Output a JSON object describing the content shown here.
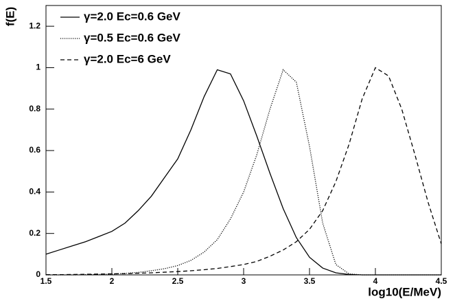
{
  "chart_data": {
    "type": "line",
    "x_label": "log10(E/MeV)",
    "y_label": "f(E)",
    "x": [
      1.5,
      1.6,
      1.7,
      1.8,
      1.9,
      2.0,
      2.1,
      2.2,
      2.3,
      2.4,
      2.5,
      2.6,
      2.7,
      2.8,
      2.9,
      3.0,
      3.1,
      3.2,
      3.3,
      3.4,
      3.5,
      3.6,
      3.7,
      3.8,
      3.9,
      4.0,
      4.1,
      4.2,
      4.3,
      4.4,
      4.5
    ],
    "series": [
      {
        "name": "γ=2.0 Ec=0.6 GeV",
        "color": "#000000",
        "dash": "solid",
        "values": [
          0.1,
          0.12,
          0.14,
          0.16,
          0.185,
          0.21,
          0.25,
          0.31,
          0.38,
          0.47,
          0.56,
          0.7,
          0.86,
          0.99,
          0.97,
          0.84,
          0.67,
          0.49,
          0.32,
          0.18,
          0.085,
          0.033,
          0.01,
          0.002,
          0,
          0,
          0,
          0,
          0,
          0,
          0
        ]
      },
      {
        "name": "γ=0.5 Ec=0.6 GeV",
        "color": "#000000",
        "dash": "dotted",
        "values": [
          0,
          0,
          0,
          0.001,
          0.002,
          0.004,
          0.007,
          0.012,
          0.02,
          0.03,
          0.045,
          0.07,
          0.11,
          0.17,
          0.27,
          0.4,
          0.58,
          0.8,
          0.99,
          0.93,
          0.62,
          0.25,
          0.05,
          0.005,
          0,
          0,
          0,
          0,
          0,
          0,
          0
        ]
      },
      {
        "name": "γ=2.0 Ec=6 GeV",
        "color": "#000000",
        "dash": "dashed",
        "values": [
          0.001,
          0.001,
          0.002,
          0.003,
          0.004,
          0.005,
          0.006,
          0.008,
          0.01,
          0.013,
          0.016,
          0.02,
          0.025,
          0.031,
          0.04,
          0.05,
          0.065,
          0.09,
          0.12,
          0.16,
          0.22,
          0.31,
          0.45,
          0.63,
          0.85,
          1.0,
          0.96,
          0.8,
          0.58,
          0.35,
          0.15
        ]
      }
    ],
    "xlim": [
      1.5,
      4.5
    ],
    "xticks": [
      1.5,
      2,
      2.5,
      3,
      3.5,
      4,
      4.5
    ],
    "ylim": [
      0,
      1.3
    ],
    "yticks": [
      0,
      0.2,
      0.4,
      0.6,
      0.8,
      1,
      1.2
    ],
    "legend": "top-left"
  }
}
